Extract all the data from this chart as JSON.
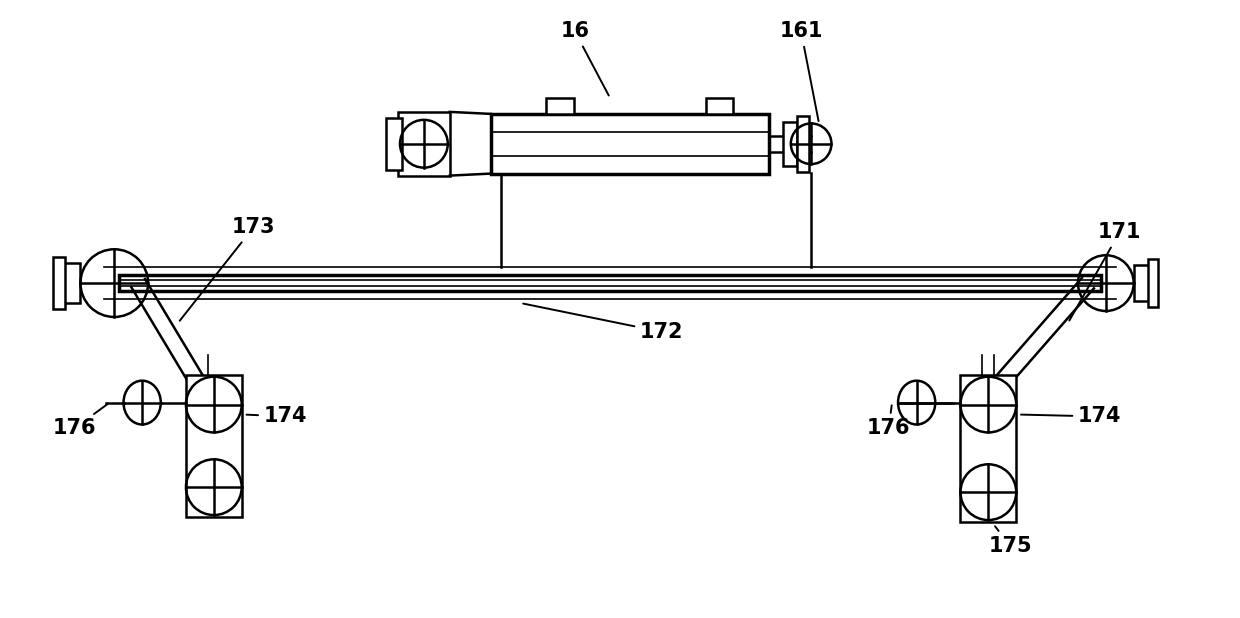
{
  "bg_color": "#ffffff",
  "line_color": "#000000",
  "lw": 1.8,
  "lw_thick": 2.5,
  "lw_thin": 1.2,
  "font_size": 15,
  "font_weight": "bold",
  "figsize": [
    12.4,
    6.18
  ],
  "dpi": 100,
  "xlim": [
    0,
    1240
  ],
  "ylim": [
    0,
    618
  ]
}
